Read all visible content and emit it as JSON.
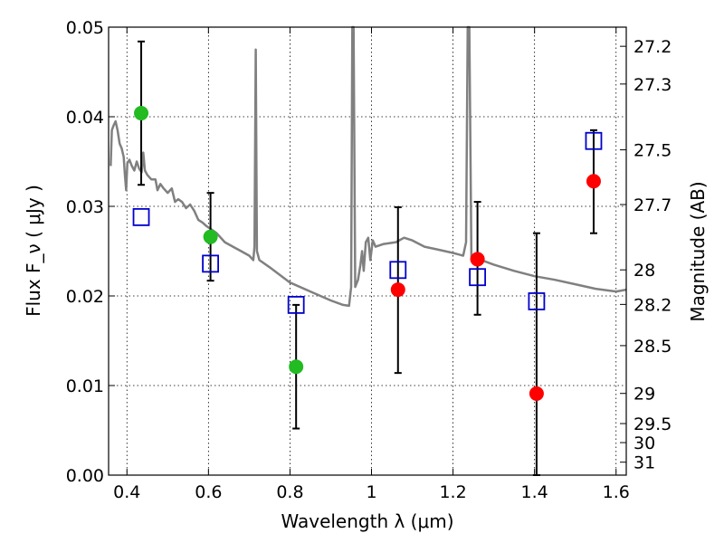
{
  "chart_data": {
    "type": "scatter",
    "title": "",
    "xlabel": "Wavelength  λ (μm)",
    "ylabel": "Flux  F_ν  ( μJy )",
    "ylabel_right": "Magnitude (AB)",
    "xlim": [
      0.355,
      1.625
    ],
    "ylim": [
      0,
      0.05
    ],
    "x_ticks": [
      0.4,
      0.6,
      0.8,
      1.0,
      1.2,
      1.4,
      1.6
    ],
    "x_tick_labels": [
      "0.4",
      "0.6",
      "0.8",
      "1",
      "1.2",
      "1.4",
      "1.6"
    ],
    "y_ticks": [
      0.0,
      0.01,
      0.02,
      0.03,
      0.04,
      0.05
    ],
    "y_tick_labels": [
      "0.00",
      "0.01",
      "0.02",
      "0.03",
      "0.04",
      "0.05"
    ],
    "right_ticks": [
      "27.2",
      "27.3",
      "27.5",
      "27.7",
      "28",
      "28.2",
      "28.5",
      "29",
      "29.5",
      "30",
      "31"
    ],
    "grid": true,
    "series": [
      {
        "kind": "line",
        "color": "#808080",
        "points": [
          [
            0.36,
            0.0345
          ],
          [
            0.363,
            0.0385
          ],
          [
            0.367,
            0.039
          ],
          [
            0.372,
            0.0395
          ],
          [
            0.377,
            0.0385
          ],
          [
            0.382,
            0.037
          ],
          [
            0.387,
            0.0365
          ],
          [
            0.392,
            0.0355
          ],
          [
            0.395,
            0.0335
          ],
          [
            0.398,
            0.0318
          ],
          [
            0.401,
            0.0348
          ],
          [
            0.406,
            0.0352
          ],
          [
            0.412,
            0.0345
          ],
          [
            0.418,
            0.034
          ],
          [
            0.424,
            0.035
          ],
          [
            0.43,
            0.0342
          ],
          [
            0.436,
            0.0338
          ],
          [
            0.44,
            0.036
          ],
          [
            0.444,
            0.034
          ],
          [
            0.45,
            0.0335
          ],
          [
            0.46,
            0.033
          ],
          [
            0.47,
            0.033
          ],
          [
            0.475,
            0.0318
          ],
          [
            0.482,
            0.0325
          ],
          [
            0.49,
            0.032
          ],
          [
            0.5,
            0.0315
          ],
          [
            0.51,
            0.032
          ],
          [
            0.518,
            0.0305
          ],
          [
            0.526,
            0.0308
          ],
          [
            0.535,
            0.0305
          ],
          [
            0.545,
            0.0298
          ],
          [
            0.555,
            0.0302
          ],
          [
            0.565,
            0.0295
          ],
          [
            0.575,
            0.0285
          ],
          [
            0.585,
            0.0282
          ],
          [
            0.595,
            0.0278
          ],
          [
            0.605,
            0.0275
          ],
          [
            0.62,
            0.027
          ],
          [
            0.64,
            0.026
          ],
          [
            0.66,
            0.0255
          ],
          [
            0.68,
            0.025
          ],
          [
            0.7,
            0.0245
          ],
          [
            0.71,
            0.024
          ],
          [
            0.713,
            0.0255
          ],
          [
            0.716,
            0.0475
          ],
          [
            0.719,
            0.025
          ],
          [
            0.725,
            0.024
          ],
          [
            0.75,
            0.0232
          ],
          [
            0.8,
            0.0215
          ],
          [
            0.85,
            0.0205
          ],
          [
            0.9,
            0.0195
          ],
          [
            0.93,
            0.019
          ],
          [
            0.945,
            0.0189
          ],
          [
            0.95,
            0.021
          ],
          [
            0.953,
            0.0505
          ],
          [
            0.956,
            0.05
          ],
          [
            0.96,
            0.021
          ],
          [
            0.967,
            0.0218
          ],
          [
            0.973,
            0.0235
          ],
          [
            0.977,
            0.025
          ],
          [
            0.981,
            0.0228
          ],
          [
            0.986,
            0.026
          ],
          [
            0.992,
            0.0265
          ],
          [
            0.997,
            0.024
          ],
          [
            1.003,
            0.0262
          ],
          [
            1.01,
            0.0255
          ],
          [
            1.03,
            0.0258
          ],
          [
            1.06,
            0.026
          ],
          [
            1.08,
            0.0265
          ],
          [
            1.1,
            0.0262
          ],
          [
            1.13,
            0.0255
          ],
          [
            1.16,
            0.0252
          ],
          [
            1.2,
            0.0248
          ],
          [
            1.225,
            0.0245
          ],
          [
            1.232,
            0.026
          ],
          [
            1.236,
            0.05
          ],
          [
            1.24,
            0.05
          ],
          [
            1.245,
            0.024
          ],
          [
            1.27,
            0.024
          ],
          [
            1.3,
            0.0235
          ],
          [
            1.35,
            0.0228
          ],
          [
            1.4,
            0.0222
          ],
          [
            1.45,
            0.0218
          ],
          [
            1.5,
            0.0213
          ],
          [
            1.55,
            0.0208
          ],
          [
            1.6,
            0.0205
          ],
          [
            1.625,
            0.0207
          ]
        ]
      },
      {
        "kind": "points",
        "marker": "circle",
        "color": "#22bb22",
        "x": [
          0.435,
          0.605,
          0.815
        ],
        "y": [
          0.0404,
          0.0266,
          0.0121
        ],
        "yerr_low": [
          0.0324,
          0.0217,
          0.0052
        ],
        "yerr_high": [
          0.0484,
          0.0315,
          0.019
        ]
      },
      {
        "kind": "points",
        "marker": "circle",
        "color": "#ff0000",
        "x": [
          1.065,
          1.26,
          1.405,
          1.545
        ],
        "y": [
          0.0207,
          0.0241,
          0.0091,
          0.0328
        ],
        "yerr_low": [
          0.0114,
          0.0179,
          0.0,
          0.027
        ],
        "yerr_high": [
          0.0299,
          0.0305,
          0.027,
          0.0385
        ]
      },
      {
        "kind": "points",
        "marker": "square-open",
        "color": "#0000cc",
        "x": [
          0.435,
          0.605,
          0.815,
          1.065,
          1.26,
          1.405,
          1.545
        ],
        "y": [
          0.0288,
          0.0236,
          0.019,
          0.0229,
          0.0221,
          0.0194,
          0.0373
        ]
      }
    ]
  }
}
